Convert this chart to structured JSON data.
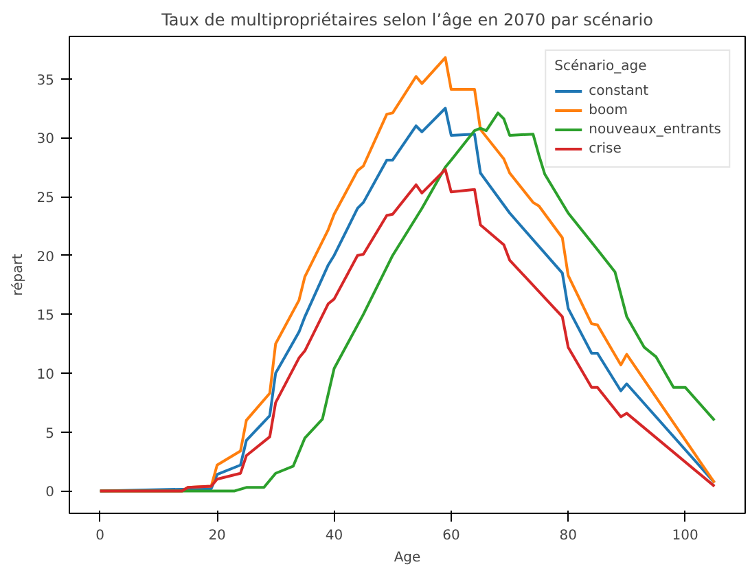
{
  "chart_data": {
    "type": "line",
    "title": "Taux de multipropriétaires selon l’âge en 2070 par scénario",
    "xlabel": "Age",
    "ylabel": "répart",
    "legend_title": "Scénario_age",
    "legend": "top right",
    "grid": false,
    "line_style": "solid",
    "xlim": [
      -5.25,
      110.25
    ],
    "xticks": [
      0,
      20,
      40,
      60,
      80,
      100
    ],
    "ylim": [
      -1.9,
      38.6
    ],
    "yticks": [
      0,
      5,
      10,
      15,
      20,
      25,
      30,
      35
    ],
    "series": [
      {
        "name": "constant",
        "color": "#1f77b4",
        "x": [
          0,
          19,
          20,
          24,
          25,
          29,
          30,
          34,
          35,
          39,
          40,
          44,
          45,
          49,
          50,
          54,
          55,
          59,
          60,
          64,
          65,
          70,
          79,
          80,
          84,
          85,
          89,
          90,
          105
        ],
        "values": [
          0,
          0.2,
          1.4,
          2.2,
          4.3,
          6.4,
          10,
          13.5,
          14.8,
          19.2,
          20,
          24,
          24.5,
          28.1,
          28.1,
          31,
          30.5,
          32.5,
          30.2,
          30.3,
          27,
          23.6,
          18.5,
          15.5,
          11.7,
          11.7,
          8.5,
          9.1,
          0.7
        ]
      },
      {
        "name": "boom",
        "color": "#ff7f0e",
        "x": [
          0,
          14,
          15,
          19,
          20,
          24,
          25,
          29,
          30,
          34,
          35,
          39,
          40,
          44,
          45,
          49,
          50,
          54,
          55,
          59,
          60,
          64,
          65,
          69,
          70,
          74,
          75,
          79,
          80,
          84,
          85,
          89,
          90,
          105
        ],
        "values": [
          0,
          0,
          0.3,
          0.4,
          2.2,
          3.4,
          6,
          8.3,
          12.5,
          16.2,
          18.2,
          22.2,
          23.5,
          27.2,
          27.6,
          32,
          32.1,
          35.2,
          34.6,
          36.8,
          34.1,
          34.1,
          30.7,
          28.2,
          27,
          24.5,
          24.2,
          21.5,
          18.3,
          14.2,
          14.1,
          10.7,
          11.6,
          0.7
        ]
      },
      {
        "name": "nouveaux_entrants",
        "color": "#2ca02c",
        "x": [
          0,
          23,
          25,
          28,
          30,
          33,
          35,
          38,
          40,
          45,
          50,
          55,
          59,
          60,
          64,
          65,
          66,
          68,
          69,
          70,
          74,
          75,
          76,
          80,
          85,
          88,
          90,
          93,
          95,
          98,
          100,
          105
        ],
        "values": [
          0,
          0,
          0.3,
          0.3,
          1.5,
          2.1,
          4.5,
          6.1,
          10.4,
          15,
          20,
          24,
          27.5,
          28.1,
          30.6,
          30.8,
          30.6,
          32.1,
          31.6,
          30.2,
          30.3,
          28.5,
          26.9,
          23.6,
          20.5,
          18.6,
          14.8,
          12.2,
          11.4,
          8.8,
          8.8,
          6
        ]
      },
      {
        "name": "crise",
        "color": "#d62728",
        "x": [
          0,
          14,
          15,
          19,
          20,
          24,
          25,
          29,
          30,
          34,
          35,
          39,
          40,
          44,
          45,
          49,
          50,
          54,
          55,
          59,
          60,
          64,
          65,
          69,
          70,
          79,
          80,
          84,
          85,
          89,
          90,
          105
        ],
        "values": [
          0,
          0,
          0.3,
          0.4,
          1,
          1.5,
          3,
          4.6,
          7.5,
          11.3,
          11.9,
          15.9,
          16.3,
          20,
          20.1,
          23.4,
          23.5,
          26,
          25.3,
          27.3,
          25.4,
          25.6,
          22.6,
          20.9,
          19.6,
          14.8,
          12.2,
          8.8,
          8.8,
          6.3,
          6.6,
          0.4
        ]
      }
    ]
  }
}
